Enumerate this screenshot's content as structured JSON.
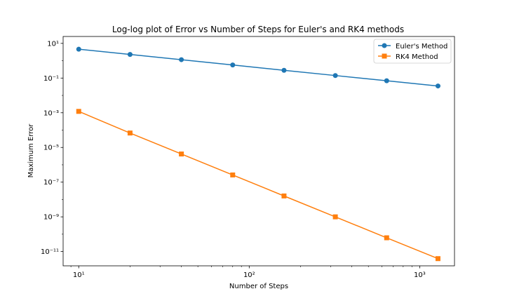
{
  "chart_data": {
    "type": "line",
    "title": "Log-log plot of Error vs Number of Steps for Euler's and RK4 methods",
    "xlabel": "Number of Steps",
    "ylabel": "Maximum Error",
    "xscale": "log",
    "yscale": "log",
    "xlim": [
      8.1,
      1600
    ],
    "ylim": [
      1.5e-12,
      25
    ],
    "grid": false,
    "legend_position": "top-right",
    "x_ticks": [
      {
        "value": 10,
        "label": "10¹"
      },
      {
        "value": 100,
        "label": "10²"
      },
      {
        "value": 1000,
        "label": "10³"
      }
    ],
    "y_ticks": [
      {
        "value": 10,
        "label": "10¹"
      },
      {
        "value": 0.1,
        "label": "10⁻¹"
      },
      {
        "value": 0.001,
        "label": "10⁻³"
      },
      {
        "value": 1e-05,
        "label": "10⁻⁵"
      },
      {
        "value": 1e-07,
        "label": "10⁻⁷"
      },
      {
        "value": 1e-09,
        "label": "10⁻⁹"
      },
      {
        "value": 1e-11,
        "label": "10⁻¹¹"
      }
    ],
    "x": [
      10,
      20,
      40,
      80,
      160,
      320,
      640,
      1280
    ],
    "series": [
      {
        "name": "Euler's Method",
        "color": "#1f77b4",
        "marker": "circle",
        "values": [
          4.6,
          2.3,
          1.15,
          0.57,
          0.28,
          0.14,
          0.07,
          0.035
        ]
      },
      {
        "name": "RK4 Method",
        "color": "#ff7f0e",
        "marker": "square",
        "values": [
          0.0012,
          6.8e-05,
          4.2e-06,
          2.6e-07,
          1.6e-08,
          1e-09,
          6.2e-11,
          3.9e-12
        ]
      }
    ]
  }
}
